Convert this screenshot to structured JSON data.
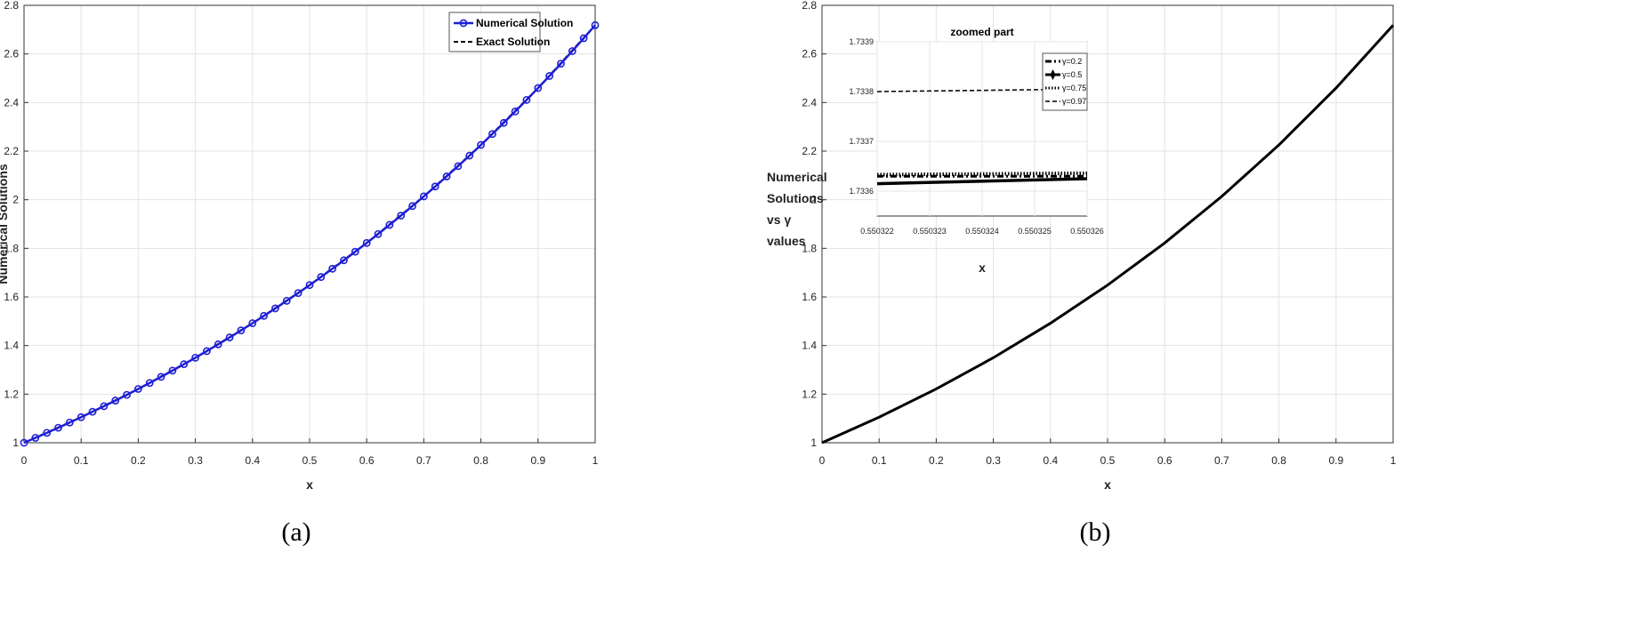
{
  "chart_data": [
    {
      "id": "a",
      "type": "line",
      "caption": "(a)",
      "xlabel": "x",
      "ylabel": "Numerical Solutions",
      "xlim": [
        0,
        1
      ],
      "ylim": [
        1,
        2.8
      ],
      "xticks": [
        "0",
        "0.1",
        "0.2",
        "0.3",
        "0.4",
        "0.5",
        "0.6",
        "0.7",
        "0.8",
        "0.9",
        "1"
      ],
      "yticks": [
        "1",
        "1.2",
        "1.4",
        "1.6",
        "1.8",
        "2",
        "2.2",
        "2.4",
        "2.6",
        "2.8"
      ],
      "grid": true,
      "legend_position": "top-right",
      "series": [
        {
          "name": "Numerical Solution",
          "color": "#1f1fd6",
          "marker": "circle",
          "x": [
            0,
            0.02,
            0.04,
            0.06,
            0.08,
            0.1,
            0.12,
            0.14,
            0.16,
            0.18,
            0.2,
            0.22,
            0.24,
            0.26,
            0.28,
            0.3,
            0.32,
            0.34,
            0.36,
            0.38,
            0.4,
            0.42,
            0.44,
            0.46,
            0.48,
            0.5,
            0.52,
            0.54,
            0.56,
            0.58,
            0.6,
            0.62,
            0.64,
            0.66,
            0.68,
            0.7,
            0.72,
            0.74,
            0.76,
            0.78,
            0.8,
            0.82,
            0.84,
            0.86,
            0.88,
            0.9,
            0.92,
            0.94,
            0.96,
            0.98,
            1
          ],
          "y": [
            1.0,
            1.0202,
            1.0408,
            1.0618,
            1.0833,
            1.1052,
            1.1275,
            1.1503,
            1.1735,
            1.1972,
            1.2214,
            1.2461,
            1.2712,
            1.2969,
            1.3231,
            1.3499,
            1.3771,
            1.4049,
            1.4333,
            1.4623,
            1.4918,
            1.522,
            1.5527,
            1.5841,
            1.6161,
            1.6487,
            1.682,
            1.716,
            1.7507,
            1.786,
            1.8221,
            1.8589,
            1.8965,
            1.9348,
            1.9739,
            2.0138,
            2.0544,
            2.0959,
            2.1383,
            2.1815,
            2.2255,
            2.2705,
            2.3164,
            2.3632,
            2.4109,
            2.4596,
            2.5093,
            2.56,
            2.6117,
            2.6645,
            2.7183
          ]
        },
        {
          "name": "Exact Solution",
          "color": "#000000",
          "dash": true,
          "x": [
            0,
            0.1,
            0.2,
            0.3,
            0.4,
            0.5,
            0.6,
            0.7,
            0.8,
            0.9,
            1
          ],
          "y": [
            1.0,
            1.1052,
            1.2214,
            1.3499,
            1.4918,
            1.6487,
            1.8221,
            2.0138,
            2.2255,
            2.4596,
            2.7183
          ]
        }
      ]
    },
    {
      "id": "b",
      "type": "line",
      "caption": "(b)",
      "xlabel": "x",
      "ylabel_lines": [
        "Numerical",
        "Solutions",
        "vs γ",
        "values"
      ],
      "xlim": [
        0,
        1
      ],
      "ylim": [
        1,
        2.8
      ],
      "xticks": [
        "0",
        "0.1",
        "0.2",
        "0.3",
        "0.4",
        "0.5",
        "0.6",
        "0.7",
        "0.8",
        "0.9",
        "1"
      ],
      "yticks": [
        "1",
        "1.2",
        "1.4",
        "1.6",
        "1.8",
        "2",
        "2.2",
        "2.4",
        "2.6",
        "2.8"
      ],
      "grid": true,
      "series": [
        {
          "color": "#000000",
          "x": [
            0,
            0.1,
            0.2,
            0.3,
            0.4,
            0.5,
            0.6,
            0.7,
            0.8,
            0.9,
            1
          ],
          "y": [
            1.0,
            1.1052,
            1.2214,
            1.3499,
            1.4918,
            1.6487,
            1.8221,
            2.0138,
            2.2255,
            2.4596,
            2.7183
          ]
        }
      ],
      "inset": {
        "title": "zoomed part",
        "xlim": [
          0.550322,
          0.550326
        ],
        "ylim": [
          1.73355,
          1.7339
        ],
        "xticks": [
          "0.550322",
          "0.550323",
          "0.550324",
          "0.550325",
          "0.550326"
        ],
        "yticks": [
          "1.7336",
          "1.7337",
          "1.7338",
          "1.7339"
        ],
        "legend_position": "top-right",
        "series": [
          {
            "name": "γ=0.2",
            "style": "dashdot-thick",
            "x": [
              0.550322,
              0.550326
            ],
            "y": [
              1.73363,
              1.73363
            ]
          },
          {
            "name": "γ=0.5",
            "style": "solid-thick-diamond",
            "x": [
              0.550322,
              0.550326
            ],
            "y": [
              1.733615,
              1.733625
            ]
          },
          {
            "name": "γ=0.75",
            "style": "dotted-thick",
            "x": [
              0.550322,
              0.550326
            ],
            "y": [
              1.733633,
              1.733636
            ]
          },
          {
            "name": "γ=0.97",
            "style": "dashed",
            "x": [
              0.550322,
              0.550326
            ],
            "y": [
              1.7338,
              1.733805
            ]
          }
        ]
      }
    }
  ]
}
